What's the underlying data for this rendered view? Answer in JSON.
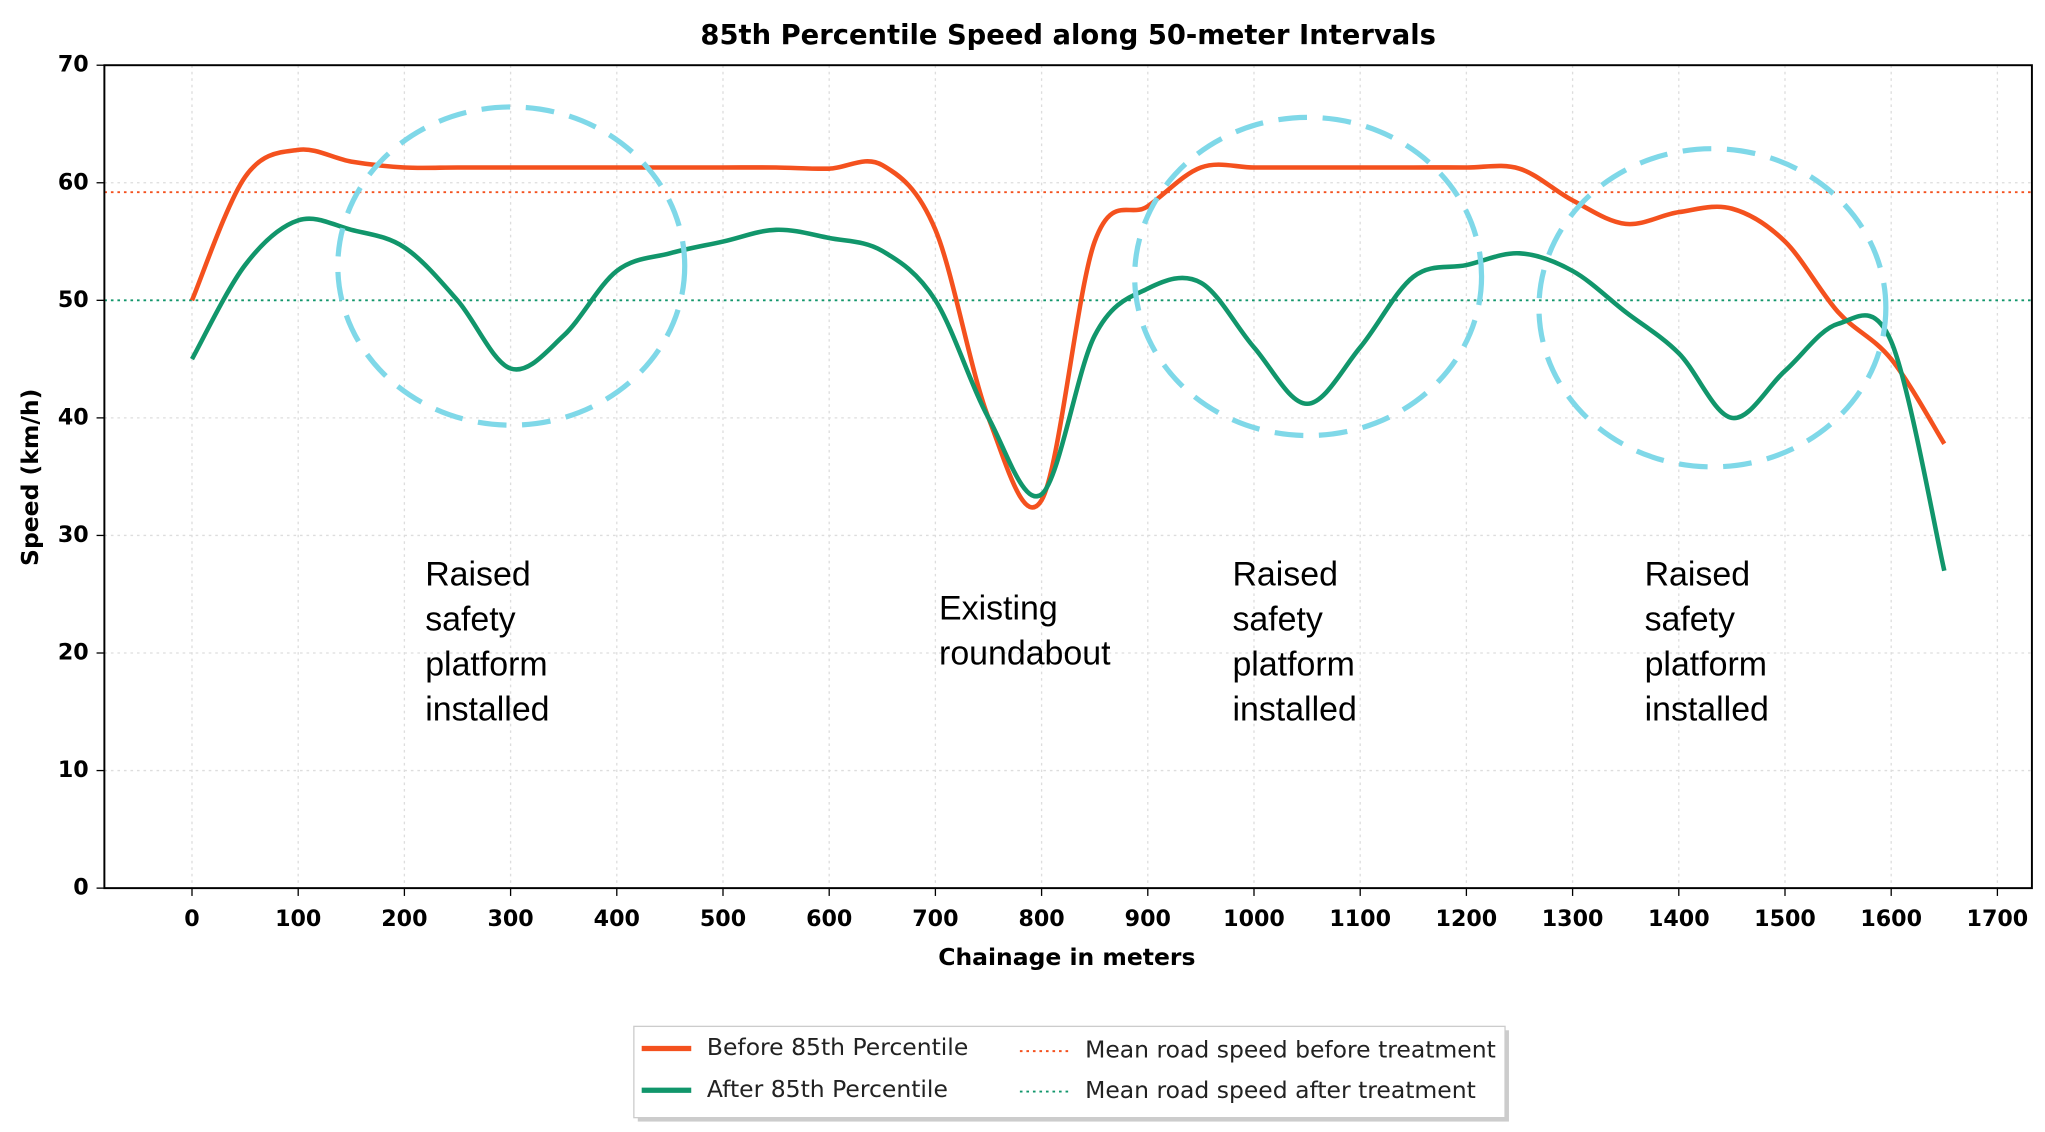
{
  "chart_data": {
    "type": "line",
    "title": "85th Percentile Speed along 50-meter Intervals",
    "x_label": "Chainage in meters",
    "y_label": "Speed (km/h)",
    "x": [
      0,
      50,
      100,
      150,
      200,
      250,
      300,
      350,
      400,
      450,
      500,
      550,
      600,
      650,
      700,
      750,
      800,
      850,
      900,
      950,
      1000,
      1050,
      1100,
      1150,
      1200,
      1250,
      1300,
      1350,
      1400,
      1450,
      1500,
      1550,
      1600,
      1650
    ],
    "series": [
      {
        "name": "Before 85th Percentile",
        "color": "#f4511e",
        "values": [
          50,
          60.5,
          62.8,
          61.8,
          61.3,
          61.3,
          61.3,
          61.3,
          61.3,
          61.3,
          61.3,
          61.3,
          61.2,
          61.5,
          56,
          40,
          33,
          55,
          58,
          61.3,
          61.3,
          61.3,
          61.3,
          61.3,
          61.3,
          61.2,
          58.5,
          56.5,
          57.5,
          57.8,
          55,
          49,
          45,
          37.8
        ]
      },
      {
        "name": "After 85th Percentile",
        "color": "#11966b",
        "values": [
          45,
          53,
          56.8,
          56,
          54.5,
          50,
          44.2,
          47,
          52.5,
          54,
          55,
          56,
          55.3,
          54.2,
          50,
          40,
          33.5,
          47,
          51,
          51.5,
          46,
          41.2,
          46,
          52,
          53,
          54,
          52.5,
          49,
          45.5,
          40,
          44,
          48,
          46.5,
          27
        ]
      }
    ],
    "reference_lines": [
      {
        "name": "Mean road speed before treatment",
        "value": 59.2,
        "color": "#f4511e"
      },
      {
        "name": "Mean road speed after treatment",
        "value": 50,
        "color": "#11966b"
      }
    ],
    "annotations": [
      {
        "lines": [
          "Raised",
          "safety",
          "platform",
          "installed"
        ]
      },
      {
        "lines": [
          "Existing",
          "roundabout"
        ]
      },
      {
        "lines": [
          "Raised",
          "safety",
          "platform",
          "installed"
        ]
      },
      {
        "lines": [
          "Raised",
          "safety",
          "platform",
          "installed"
        ]
      }
    ],
    "xlim": [
      -82.5,
      1732.5
    ],
    "xticks": [
      0,
      100,
      200,
      300,
      400,
      500,
      600,
      700,
      800,
      900,
      1000,
      1100,
      1200,
      1300,
      1400,
      1500,
      1600,
      1700
    ],
    "ylim": [
      0,
      70
    ],
    "yticks": [
      0,
      10,
      20,
      30,
      40,
      50,
      60,
      70
    ],
    "grid": true,
    "legend": "bottom"
  }
}
